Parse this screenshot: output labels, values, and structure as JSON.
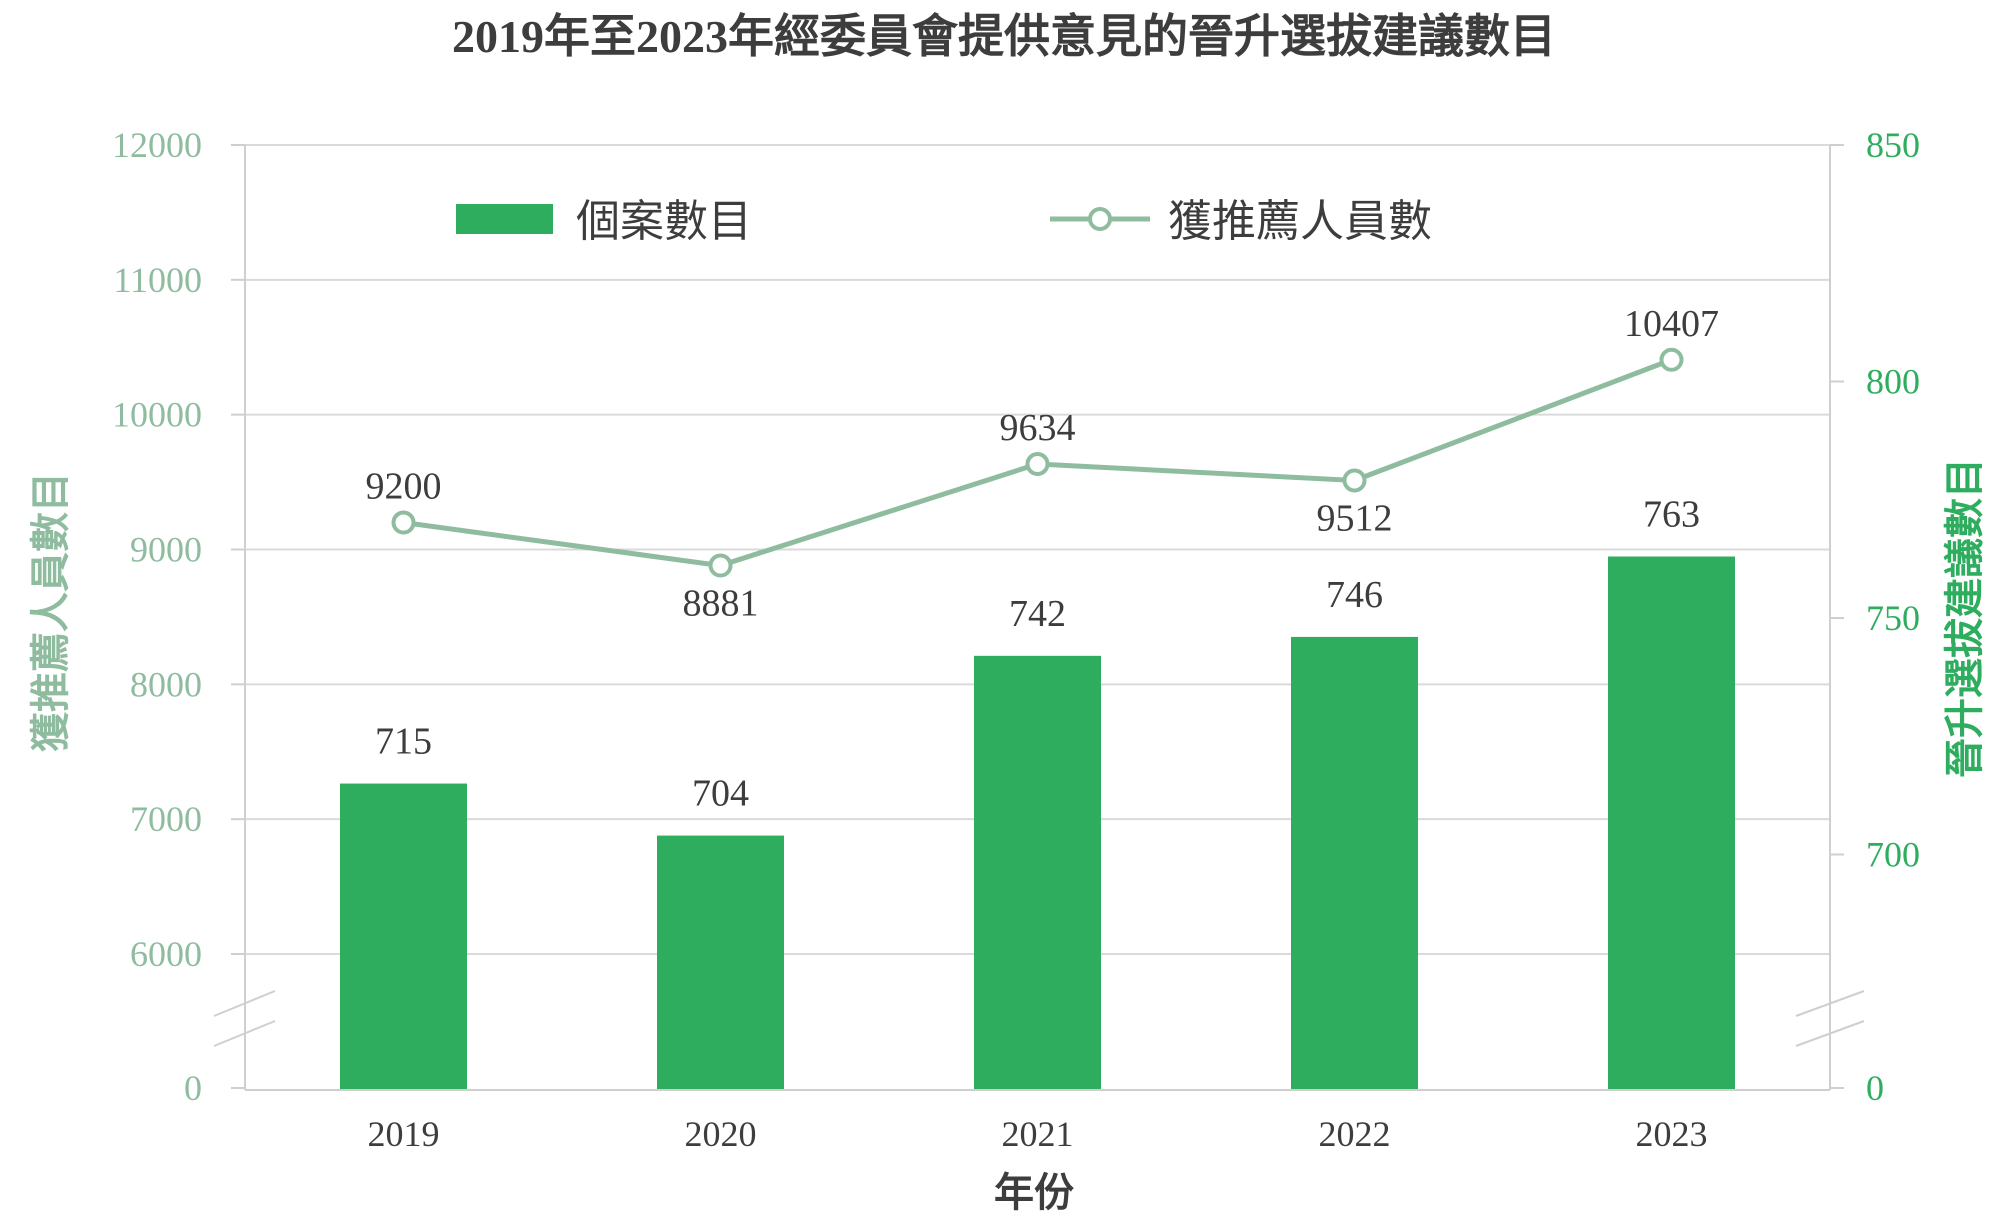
{
  "chart_data": {
    "type": "bar",
    "title": "2019年至2023年經委員會提供意見的晉升選拔建議數目",
    "xlabel": "年份",
    "ylabel_left": "獲推薦人員數目",
    "ylabel_right": "晉升選拔建議數目",
    "categories": [
      "2019",
      "2020",
      "2021",
      "2022",
      "2023"
    ],
    "series": [
      {
        "name": "個案數目",
        "kind": "bar",
        "axis": "right",
        "color": "#2ead5f",
        "values": [
          715,
          704,
          742,
          746,
          763
        ]
      },
      {
        "name": "獲推薦人員數",
        "kind": "line",
        "axis": "left",
        "color": "#8fbc9f",
        "values": [
          9200,
          8881,
          9634,
          9512,
          10407
        ]
      }
    ],
    "left_axis": {
      "ticks": [
        "12000",
        "11000",
        "10000",
        "9000",
        "8000",
        "7000",
        "6000",
        "0"
      ],
      "range": [
        6000,
        12000
      ],
      "broken": true,
      "color": "#8fbc9f"
    },
    "right_axis": {
      "ticks": [
        "850",
        "800",
        "750",
        "700",
        "0"
      ],
      "range": [
        680,
        850
      ],
      "broken": true,
      "color": "#2ead5f"
    },
    "grid": true,
    "legend_position": "top"
  }
}
